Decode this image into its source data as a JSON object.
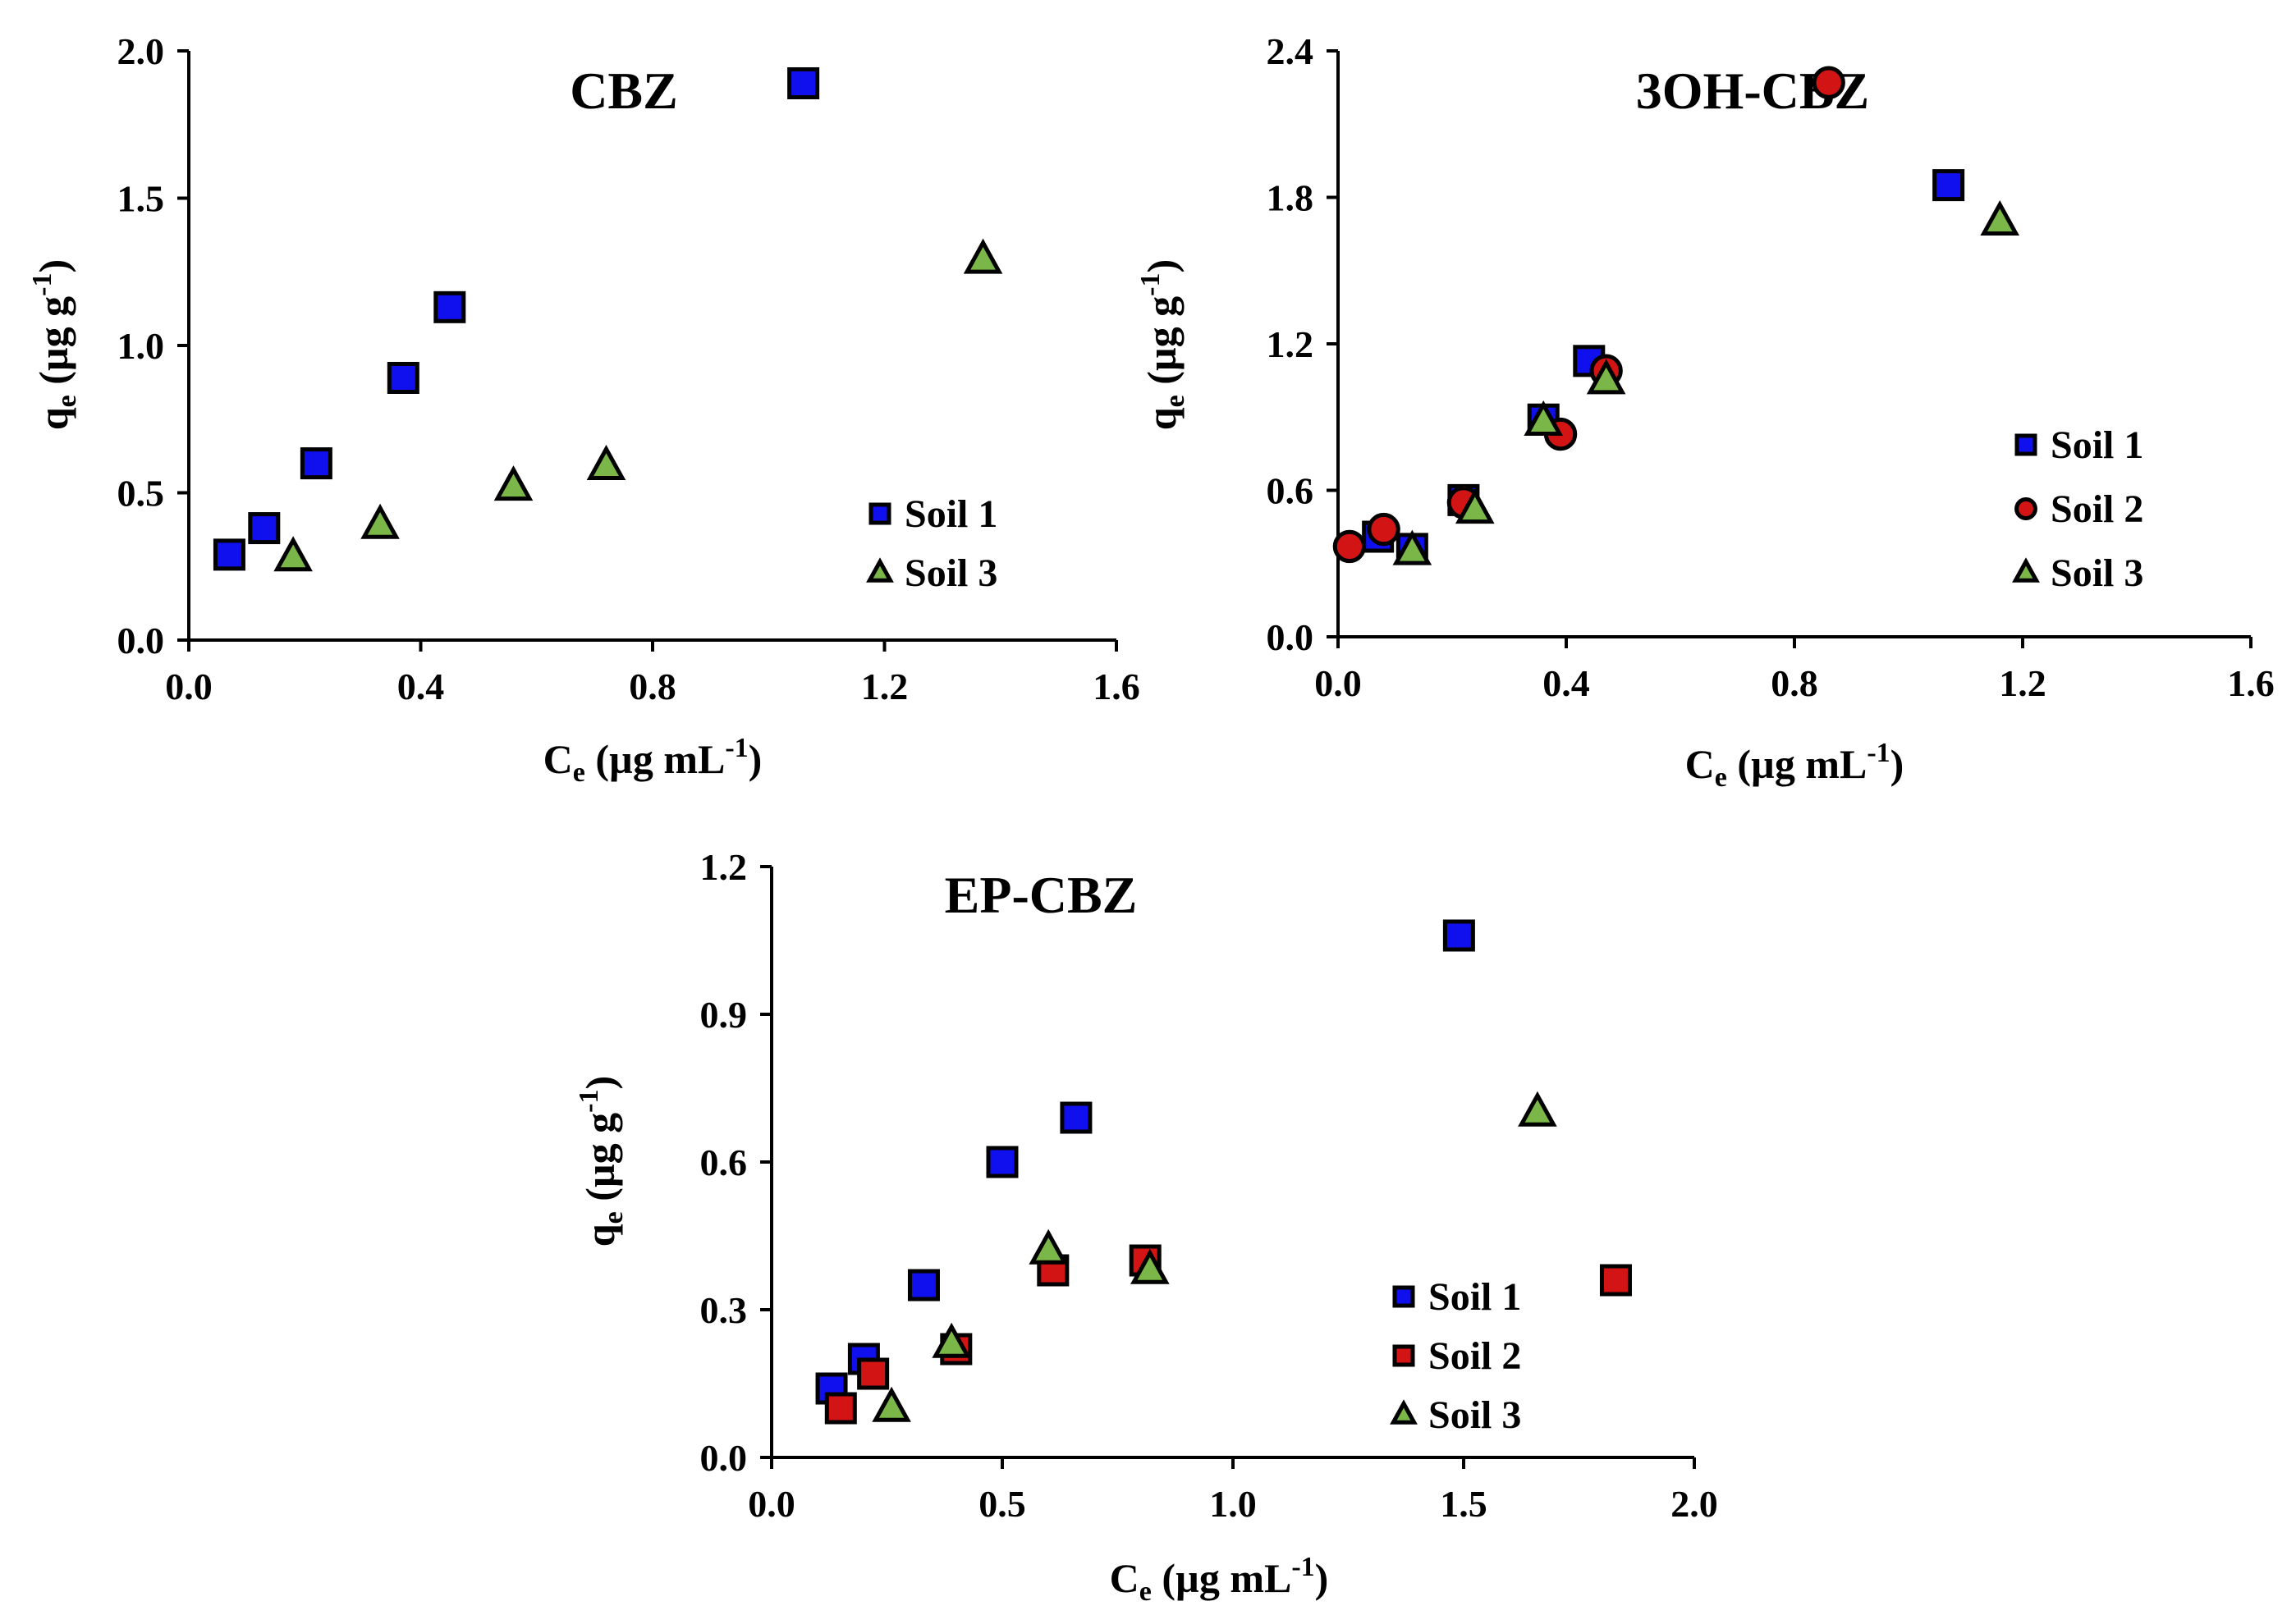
{
  "colors": {
    "soil1": "#1010ee",
    "soil2": "#d21414",
    "soil3": "#7ab648"
  },
  "chart_data": [
    {
      "type": "scatter",
      "title": "CBZ",
      "xlabel": {
        "main": "C",
        "sub": "e",
        "rest": " (µg mL",
        "sup": "-1",
        "end": ")"
      },
      "ylabel": {
        "main": "q",
        "sub": "e",
        "rest": " (µg g",
        "sup": "-1",
        "end": ")"
      },
      "xlim": [
        0,
        1.6
      ],
      "ylim": [
        0,
        2.0
      ],
      "xticks": [
        "0.0",
        "0.4",
        "0.8",
        "1.2",
        "1.6"
      ],
      "yticks": [
        "0.0",
        "0.5",
        "1.0",
        "1.5",
        "2.0"
      ],
      "grid": false,
      "legend_position": "bottom-right",
      "series": [
        {
          "name": "Soil 1",
          "marker": "square",
          "color": "#1010ee",
          "points": [
            [
              0.07,
              0.29
            ],
            [
              0.13,
              0.38
            ],
            [
              0.22,
              0.6
            ],
            [
              0.37,
              0.89
            ],
            [
              0.45,
              1.13
            ],
            [
              1.06,
              1.89
            ]
          ]
        },
        {
          "name": "Soil 3",
          "marker": "triangle",
          "color": "#7ab648",
          "points": [
            [
              0.18,
              0.28
            ],
            [
              0.33,
              0.39
            ],
            [
              0.56,
              0.52
            ],
            [
              0.72,
              0.59
            ],
            [
              1.37,
              1.29
            ]
          ]
        }
      ]
    },
    {
      "type": "scatter",
      "title": "3OH-CBZ",
      "xlabel": {
        "main": "C",
        "sub": "e",
        "rest": " (µg mL",
        "sup": "-1",
        "end": ")"
      },
      "ylabel": {
        "main": "q",
        "sub": "e",
        "rest": " (µg g",
        "sup": "-1",
        "end": ")"
      },
      "xlim": [
        0,
        1.6
      ],
      "ylim": [
        0,
        2.4
      ],
      "xticks": [
        "0.0",
        "0.4",
        "0.8",
        "1.2",
        "1.6"
      ],
      "yticks": [
        "0.0",
        "0.6",
        "1.2",
        "1.8",
        "2.4"
      ],
      "grid": false,
      "legend_position": "right",
      "series": [
        {
          "name": "Soil 1",
          "marker": "square",
          "color": "#1010ee",
          "points": [
            [
              0.07,
              0.41
            ],
            [
              0.13,
              0.36
            ],
            [
              0.22,
              0.56
            ],
            [
              0.36,
              0.89
            ],
            [
              0.44,
              1.13
            ],
            [
              1.07,
              1.85
            ]
          ]
        },
        {
          "name": "Soil 2",
          "marker": "circle",
          "color": "#d21414",
          "points": [
            [
              0.02,
              0.37
            ],
            [
              0.08,
              0.44
            ],
            [
              0.22,
              0.55
            ],
            [
              0.39,
              0.83
            ],
            [
              0.47,
              1.09
            ],
            [
              0.86,
              2.27
            ]
          ]
        },
        {
          "name": "Soil 3",
          "marker": "triangle",
          "color": "#7ab648",
          "points": [
            [
              0.13,
              0.35
            ],
            [
              0.24,
              0.52
            ],
            [
              0.36,
              0.88
            ],
            [
              0.47,
              1.05
            ],
            [
              1.16,
              1.7
            ]
          ]
        }
      ]
    },
    {
      "type": "scatter",
      "title": "EP-CBZ",
      "xlabel": {
        "main": "C",
        "sub": "e",
        "rest": " (µg mL",
        "sup": "-1",
        "end": ")"
      },
      "ylabel": {
        "main": "q",
        "sub": "e",
        "rest": " (µg g",
        "sup": "-1",
        "end": ")"
      },
      "xlim": [
        0,
        2.0
      ],
      "ylim": [
        0,
        1.2
      ],
      "xticks": [
        "0.0",
        "0.5",
        "1.0",
        "1.5",
        "2.0"
      ],
      "yticks": [
        "0.0",
        "0.3",
        "0.6",
        "0.9",
        "1.2"
      ],
      "grid": false,
      "legend_position": "bottom-right",
      "series": [
        {
          "name": "Soil 1",
          "marker": "square",
          "color": "#1010ee",
          "points": [
            [
              0.13,
              0.14
            ],
            [
              0.2,
              0.2
            ],
            [
              0.33,
              0.35
            ],
            [
              0.5,
              0.6
            ],
            [
              0.66,
              0.69
            ],
            [
              1.49,
              1.06
            ]
          ]
        },
        {
          "name": "Soil 2",
          "marker": "square",
          "color": "#d21414",
          "points": [
            [
              0.15,
              0.1
            ],
            [
              0.22,
              0.17
            ],
            [
              0.4,
              0.22
            ],
            [
              0.61,
              0.38
            ],
            [
              0.81,
              0.4
            ],
            [
              1.83,
              0.36
            ]
          ]
        },
        {
          "name": "Soil 3",
          "marker": "triangle",
          "color": "#7ab648",
          "points": [
            [
              0.26,
              0.1
            ],
            [
              0.39,
              0.23
            ],
            [
              0.6,
              0.42
            ],
            [
              0.82,
              0.38
            ],
            [
              1.66,
              0.7
            ]
          ]
        }
      ]
    }
  ]
}
